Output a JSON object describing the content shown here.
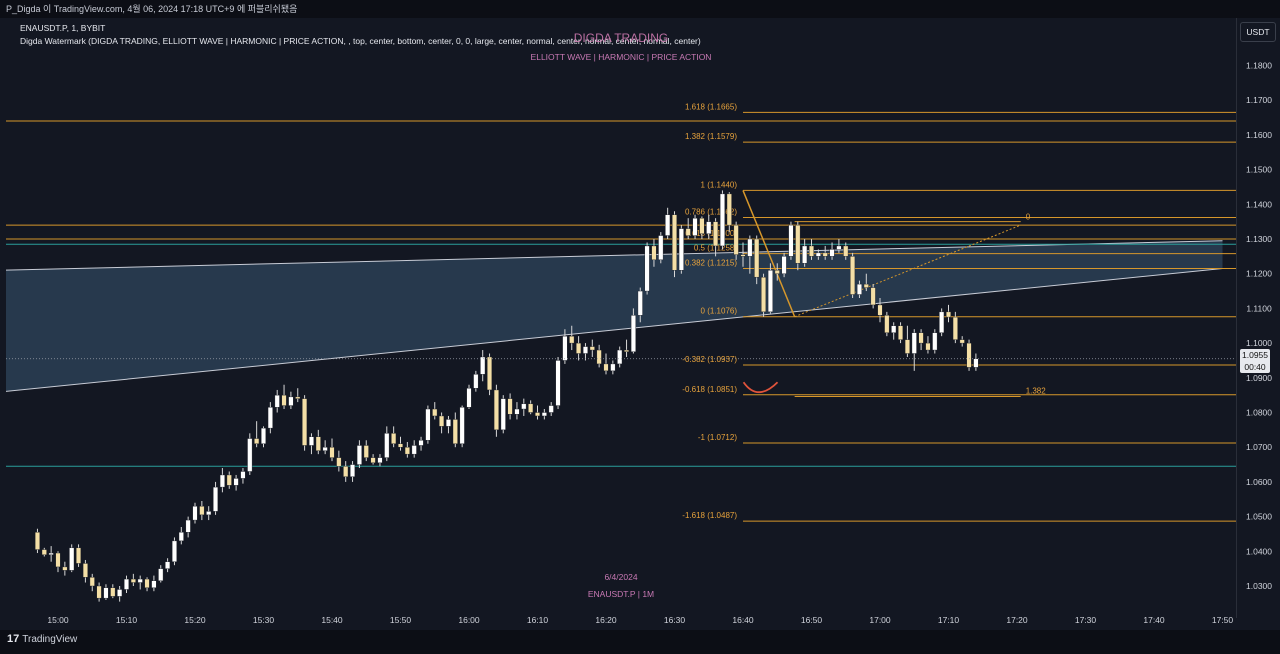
{
  "header": {
    "text": "P_Digda 이 TradingView.com, 4월 06, 2024 17:18 UTC+9 에 퍼블리쉬됐음"
  },
  "symbol_line": "ENAUSDT.P, 1, BYBIT",
  "indicator_line": "Digda Watermark (DIGDA TRADING, ELLIOTT WAVE   |   HARMONIC   |   PRICE ACTION, , top, center, bottom, center, 0, 0, large, center, normal, center, normal, center, normal, center)",
  "watermark_title": "DIGDA TRADING",
  "watermark_subtitle": "ELLIOTT WAVE   |   HARMONIC   |   PRICE ACTION",
  "watermark_date": "6/4/2024",
  "watermark_symbol": "ENAUSDT.P  |  1M",
  "currency": "USDT",
  "current_price": "1.0955",
  "countdown": "00:40",
  "logo_text": "TradingView",
  "colors": {
    "background": "#131722",
    "fib_line": "#d6972b",
    "fib_text": "#e8a33c",
    "channel_fill": "#2b3f55",
    "channel_line": "#c8ccd6",
    "cyan_line": "#2a9d9a",
    "candle_up": "#ffffff",
    "candle_down": "#f4dfa6",
    "watermark": "#d87fb8",
    "arc": "#e0533b"
  },
  "chart_data": {
    "type": "candlestick",
    "symbol": "ENAUSDT.P",
    "interval": "1",
    "exchange": "BYBIT",
    "y_axis": {
      "range": [
        1.025,
        1.195
      ],
      "ticks": [
        "1.1800",
        "1.1700",
        "1.1600",
        "1.1500",
        "1.1400",
        "1.1300",
        "1.1200",
        "1.1100",
        "1.1000",
        "1.0900",
        "1.0800",
        "1.0700",
        "1.0600",
        "1.0500",
        "1.0400",
        "1.0300"
      ]
    },
    "x_axis": {
      "ticks": [
        "15:00",
        "15:10",
        "15:20",
        "15:30",
        "15:40",
        "15:50",
        "16:00",
        "16:10",
        "16:20",
        "16:30",
        "16:40",
        "16:50",
        "17:00",
        "17:10",
        "17:20",
        "17:30",
        "17:40",
        "17:50"
      ]
    },
    "fib_levels": [
      {
        "label": "1.618 (1.1665)",
        "value": 1.1665
      },
      {
        "label": "1.382 (1.1579)",
        "value": 1.1579
      },
      {
        "label": "1 (1.1440)",
        "value": 1.144
      },
      {
        "label": "0.786 (1.1362)",
        "value": 1.1362
      },
      {
        "label": "0.618 (1.1300)",
        "value": 1.13
      },
      {
        "label": "0.5 (1.1258)",
        "value": 1.1258
      },
      {
        "label": "0.382 (1.1215)",
        "value": 1.1215
      },
      {
        "label": "0 (1.1076)",
        "value": 1.1076
      },
      {
        "label": "-0.382 (1.0937)",
        "value": 1.0937
      },
      {
        "label": "-0.618 (1.0851)",
        "value": 1.0851
      },
      {
        "label": "-1 (1.0712)",
        "value": 1.0712
      },
      {
        "label": "-1.618 (1.0487)",
        "value": 1.0487
      }
    ],
    "projection_labels": {
      "end_label": "0",
      "ext_label": "1.382"
    },
    "horizontal_lines": [
      {
        "color": "orange",
        "value": 1.164
      },
      {
        "color": "orange",
        "value": 1.134
      },
      {
        "color": "orange",
        "value": 1.13
      },
      {
        "color": "cyan",
        "value": 1.1285
      },
      {
        "color": "cyan",
        "value": 1.0645
      }
    ],
    "channel": {
      "upper": [
        {
          "time": "14:52",
          "price": 1.121
        },
        {
          "time": "17:50",
          "price": 1.1295
        }
      ],
      "lower": [
        {
          "time": "14:52",
          "price": 1.086
        },
        {
          "time": "17:50",
          "price": 1.1215
        }
      ]
    },
    "candles": [
      [
        1.0455,
        1.0465,
        1.0395,
        1.0405
      ],
      [
        1.0405,
        1.041,
        1.0385,
        1.039
      ],
      [
        1.039,
        1.0415,
        1.037,
        1.0395
      ],
      [
        1.0395,
        1.04,
        1.034,
        1.0355
      ],
      [
        1.0355,
        1.037,
        1.033,
        1.0345
      ],
      [
        1.0345,
        1.042,
        1.034,
        1.041
      ],
      [
        1.041,
        1.042,
        1.0355,
        1.0365
      ],
      [
        1.0365,
        1.0375,
        1.031,
        1.0325
      ],
      [
        1.0325,
        1.0335,
        1.0285,
        1.03
      ],
      [
        1.03,
        1.031,
        1.0255,
        1.0265
      ],
      [
        1.0265,
        1.0305,
        1.026,
        1.0295
      ],
      [
        1.0295,
        1.0305,
        1.0265,
        1.027
      ],
      [
        1.027,
        1.03,
        1.0255,
        1.029
      ],
      [
        1.029,
        1.033,
        1.028,
        1.032
      ],
      [
        1.032,
        1.0335,
        1.03,
        1.031
      ],
      [
        1.031,
        1.033,
        1.029,
        1.032
      ],
      [
        1.032,
        1.0325,
        1.0285,
        1.0295
      ],
      [
        1.0295,
        1.033,
        1.0285,
        1.0315
      ],
      [
        1.0315,
        1.036,
        1.031,
        1.035
      ],
      [
        1.035,
        1.038,
        1.034,
        1.037
      ],
      [
        1.037,
        1.044,
        1.036,
        1.043
      ],
      [
        1.043,
        1.047,
        1.042,
        1.0455
      ],
      [
        1.0455,
        1.05,
        1.044,
        1.049
      ],
      [
        1.049,
        1.054,
        1.048,
        1.053
      ],
      [
        1.053,
        1.0545,
        1.049,
        1.0505
      ],
      [
        1.0505,
        1.053,
        1.049,
        1.0515
      ],
      [
        1.0515,
        1.06,
        1.0505,
        1.0585
      ],
      [
        1.0585,
        1.064,
        1.057,
        1.062
      ],
      [
        1.062,
        1.063,
        1.058,
        1.059
      ],
      [
        1.059,
        1.062,
        1.0575,
        1.061
      ],
      [
        1.061,
        1.064,
        1.0595,
        1.063
      ],
      [
        1.063,
        1.074,
        1.062,
        1.0725
      ],
      [
        1.0725,
        1.0775,
        1.07,
        1.071
      ],
      [
        1.071,
        1.076,
        1.07,
        1.0755
      ],
      [
        1.0755,
        1.083,
        1.074,
        1.0815
      ],
      [
        1.0815,
        1.0865,
        1.08,
        1.085
      ],
      [
        1.085,
        1.088,
        1.081,
        1.082
      ],
      [
        1.082,
        1.086,
        1.081,
        1.0845
      ],
      [
        1.0845,
        1.087,
        1.083,
        1.084
      ],
      [
        1.084,
        1.085,
        1.069,
        1.0705
      ],
      [
        1.0705,
        1.074,
        1.068,
        1.073
      ],
      [
        1.073,
        1.075,
        1.068,
        1.069
      ],
      [
        1.069,
        1.072,
        1.068,
        1.07
      ],
      [
        1.07,
        1.0725,
        1.066,
        1.067
      ],
      [
        1.067,
        1.069,
        1.063,
        1.0645
      ],
      [
        1.0645,
        1.066,
        1.06,
        1.0615
      ],
      [
        1.0615,
        1.066,
        1.06,
        1.065
      ],
      [
        1.065,
        1.072,
        1.064,
        1.0705
      ],
      [
        1.0705,
        1.072,
        1.066,
        1.067
      ],
      [
        1.067,
        1.068,
        1.065,
        1.0655
      ],
      [
        1.0655,
        1.068,
        1.0645,
        1.067
      ],
      [
        1.067,
        1.076,
        1.066,
        1.074
      ],
      [
        1.074,
        1.076,
        1.07,
        1.071
      ],
      [
        1.071,
        1.073,
        1.069,
        1.07
      ],
      [
        1.07,
        1.0715,
        1.067,
        1.068
      ],
      [
        1.068,
        1.072,
        1.067,
        1.0705
      ],
      [
        1.0705,
        1.073,
        1.069,
        1.072
      ],
      [
        1.072,
        1.082,
        1.071,
        1.081
      ],
      [
        1.081,
        1.083,
        1.078,
        1.079
      ],
      [
        1.079,
        1.08,
        1.074,
        1.076
      ],
      [
        1.076,
        1.079,
        1.074,
        1.078
      ],
      [
        1.078,
        1.08,
        1.07,
        1.071
      ],
      [
        1.071,
        1.082,
        1.07,
        1.0815
      ],
      [
        1.0815,
        1.088,
        1.081,
        1.087
      ],
      [
        1.087,
        1.092,
        1.086,
        1.091
      ],
      [
        1.091,
        1.098,
        1.089,
        1.096
      ],
      [
        1.096,
        1.097,
        1.085,
        1.0865
      ],
      [
        1.0865,
        1.088,
        1.073,
        1.075
      ],
      [
        1.075,
        1.085,
        1.074,
        1.084
      ],
      [
        1.084,
        1.0855,
        1.078,
        1.0795
      ],
      [
        1.0795,
        1.083,
        1.078,
        1.081
      ],
      [
        1.081,
        1.084,
        1.079,
        1.0825
      ],
      [
        1.0825,
        1.0835,
        1.0795,
        1.08
      ],
      [
        1.08,
        1.082,
        1.078,
        1.079
      ],
      [
        1.079,
        1.081,
        1.078,
        1.08
      ],
      [
        1.08,
        1.083,
        1.079,
        1.082
      ],
      [
        1.082,
        1.096,
        1.081,
        1.095
      ],
      [
        1.095,
        1.104,
        1.094,
        1.102
      ],
      [
        1.102,
        1.105,
        1.098,
        1.1
      ],
      [
        1.1,
        1.102,
        1.095,
        1.097
      ],
      [
        1.097,
        1.1,
        1.095,
        1.099
      ],
      [
        1.099,
        1.101,
        1.096,
        1.098
      ],
      [
        1.098,
        1.0995,
        1.093,
        1.094
      ],
      [
        1.094,
        1.097,
        1.091,
        1.092
      ],
      [
        1.092,
        1.095,
        1.091,
        1.094
      ],
      [
        1.094,
        1.099,
        1.093,
        1.098
      ],
      [
        1.098,
        1.101,
        1.096,
        1.0975
      ],
      [
        1.0975,
        1.11,
        1.097,
        1.108
      ],
      [
        1.108,
        1.116,
        1.106,
        1.115
      ],
      [
        1.115,
        1.129,
        1.114,
        1.128
      ],
      [
        1.128,
        1.13,
        1.122,
        1.124
      ],
      [
        1.124,
        1.132,
        1.123,
        1.131
      ],
      [
        1.131,
        1.139,
        1.13,
        1.137
      ],
      [
        1.137,
        1.138,
        1.119,
        1.121
      ],
      [
        1.121,
        1.134,
        1.12,
        1.133
      ],
      [
        1.133,
        1.136,
        1.13,
        1.131
      ],
      [
        1.131,
        1.137,
        1.13,
        1.136
      ],
      [
        1.136,
        1.1365,
        1.13,
        1.1315
      ],
      [
        1.1315,
        1.137,
        1.13,
        1.135
      ],
      [
        1.135,
        1.136,
        1.125,
        1.128
      ],
      [
        1.128,
        1.144,
        1.127,
        1.143
      ],
      [
        1.143,
        1.1435,
        1.132,
        1.134
      ],
      [
        1.134,
        1.135,
        1.124,
        1.1255
      ],
      [
        1.1255,
        1.129,
        1.122,
        1.125
      ],
      [
        1.125,
        1.131,
        1.12,
        1.13
      ],
      [
        1.13,
        1.131,
        1.117,
        1.119
      ],
      [
        1.119,
        1.12,
        1.1076,
        1.109
      ],
      [
        1.109,
        1.123,
        1.1085,
        1.121
      ],
      [
        1.121,
        1.123,
        1.118,
        1.12
      ],
      [
        1.12,
        1.126,
        1.119,
        1.125
      ],
      [
        1.125,
        1.135,
        1.124,
        1.134
      ],
      [
        1.134,
        1.135,
        1.121,
        1.123
      ],
      [
        1.123,
        1.13,
        1.122,
        1.128
      ],
      [
        1.128,
        1.13,
        1.124,
        1.125
      ],
      [
        1.125,
        1.127,
        1.124,
        1.126
      ],
      [
        1.126,
        1.128,
        1.124,
        1.125
      ],
      [
        1.125,
        1.129,
        1.124,
        1.127
      ],
      [
        1.127,
        1.13,
        1.126,
        1.128
      ],
      [
        1.128,
        1.129,
        1.124,
        1.125
      ],
      [
        1.125,
        1.126,
        1.113,
        1.114
      ],
      [
        1.114,
        1.118,
        1.113,
        1.117
      ],
      [
        1.117,
        1.12,
        1.115,
        1.116
      ],
      [
        1.116,
        1.117,
        1.11,
        1.111
      ],
      [
        1.111,
        1.113,
        1.106,
        1.108
      ],
      [
        1.108,
        1.109,
        1.102,
        1.103
      ],
      [
        1.103,
        1.106,
        1.101,
        1.105
      ],
      [
        1.105,
        1.106,
        1.1,
        1.101
      ],
      [
        1.101,
        1.105,
        1.096,
        1.097
      ],
      [
        1.097,
        1.104,
        1.092,
        1.103
      ],
      [
        1.103,
        1.104,
        1.098,
        1.1
      ],
      [
        1.1,
        1.102,
        1.097,
        1.098
      ],
      [
        1.098,
        1.104,
        1.097,
        1.103
      ],
      [
        1.103,
        1.11,
        1.102,
        1.109
      ],
      [
        1.109,
        1.111,
        1.106,
        1.1075
      ],
      [
        1.1075,
        1.109,
        1.1,
        1.101
      ],
      [
        1.101,
        1.102,
        1.099,
        1.1
      ],
      [
        1.1,
        1.101,
        1.092,
        1.093
      ],
      [
        1.093,
        1.097,
        1.092,
        1.0955
      ]
    ]
  }
}
